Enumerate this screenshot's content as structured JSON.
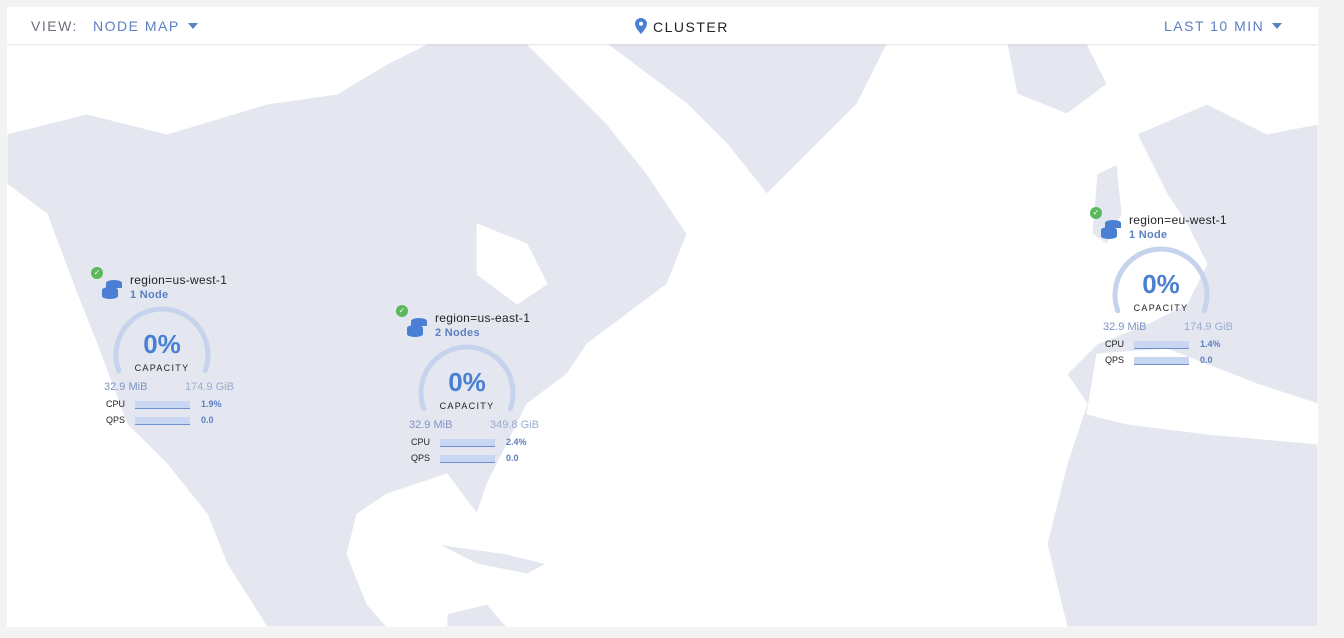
{
  "header": {
    "view_label": "VIEW:",
    "view_value": "NODE MAP",
    "breadcrumb": "CLUSTER",
    "time_range": "LAST 10 MIN"
  },
  "colors": {
    "accent": "#4a7fd4",
    "healthy": "#5cb85c",
    "land": "#e4e7ef",
    "water": "#ffffff"
  },
  "regions": [
    {
      "name": "region=us-west-1",
      "nodes": "1 Node",
      "capacity_pct": "0%",
      "capacity_label": "CAPACITY",
      "used": "32.9 MiB",
      "total": "174.9 GiB",
      "cpu_label": "CPU",
      "cpu": "1.9%",
      "qps_label": "QPS",
      "qps": "0.0",
      "status": "healthy"
    },
    {
      "name": "region=us-east-1",
      "nodes": "2 Nodes",
      "capacity_pct": "0%",
      "capacity_label": "CAPACITY",
      "used": "32.9 MiB",
      "total": "349.8 GiB",
      "cpu_label": "CPU",
      "cpu": "2.4%",
      "qps_label": "QPS",
      "qps": "0.0",
      "status": "healthy"
    },
    {
      "name": "region=eu-west-1",
      "nodes": "1 Node",
      "capacity_pct": "0%",
      "capacity_label": "CAPACITY",
      "used": "32.9 MiB",
      "total": "174.9 GiB",
      "cpu_label": "CPU",
      "cpu": "1.4%",
      "qps_label": "QPS",
      "qps": "0.0",
      "status": "healthy"
    }
  ]
}
